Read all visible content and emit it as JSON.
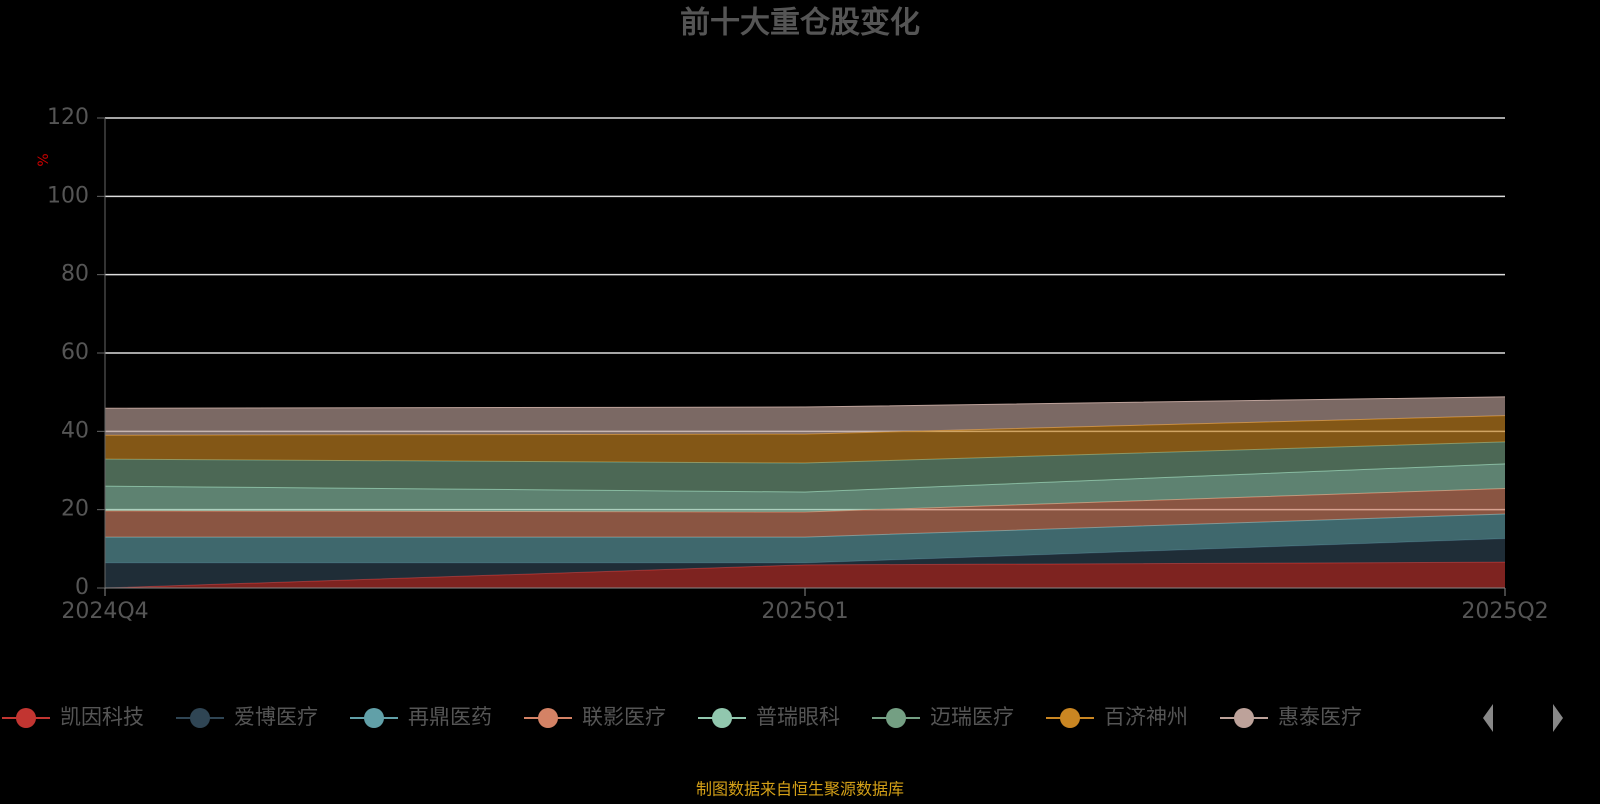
{
  "chart_data": {
    "type": "stacked-area",
    "title": "前十大重仓股变化",
    "y_label": "%",
    "categories": [
      "2024Q4",
      "2025Q1",
      "2025Q2"
    ],
    "ylim": [
      0,
      120
    ],
    "yticks": [
      0,
      20,
      40,
      60,
      80,
      100,
      120
    ],
    "grid": true,
    "series": [
      {
        "name": "凯因科技",
        "color": "#c23531",
        "values": [
          0,
          5.9,
          6.6
        ]
      },
      {
        "name": "爱博医疗",
        "color": "#2f4554",
        "values": [
          6.4,
          0.5,
          6.0
        ]
      },
      {
        "name": "再鼎医药",
        "color": "#61a0a8",
        "values": [
          6.6,
          6.6,
          6.3
        ]
      },
      {
        "name": "联影医疗",
        "color": "#d48265",
        "values": [
          6.7,
          6.4,
          6.5
        ]
      },
      {
        "name": "普瑞眼科",
        "color": "#91c7ae",
        "values": [
          6.3,
          5.1,
          6.3
        ]
      },
      {
        "name": "迈瑞医疗",
        "color": "#749f83",
        "values": [
          6.9,
          7.4,
          5.6
        ]
      },
      {
        "name": "百济神州",
        "color": "#ca8622",
        "values": [
          6.1,
          7.4,
          6.7
        ]
      },
      {
        "name": "惠泰医疗",
        "color": "#bda29a",
        "values": [
          6.9,
          6.9,
          4.8
        ]
      }
    ],
    "source": "制图数据来自恒生聚源数据库"
  }
}
